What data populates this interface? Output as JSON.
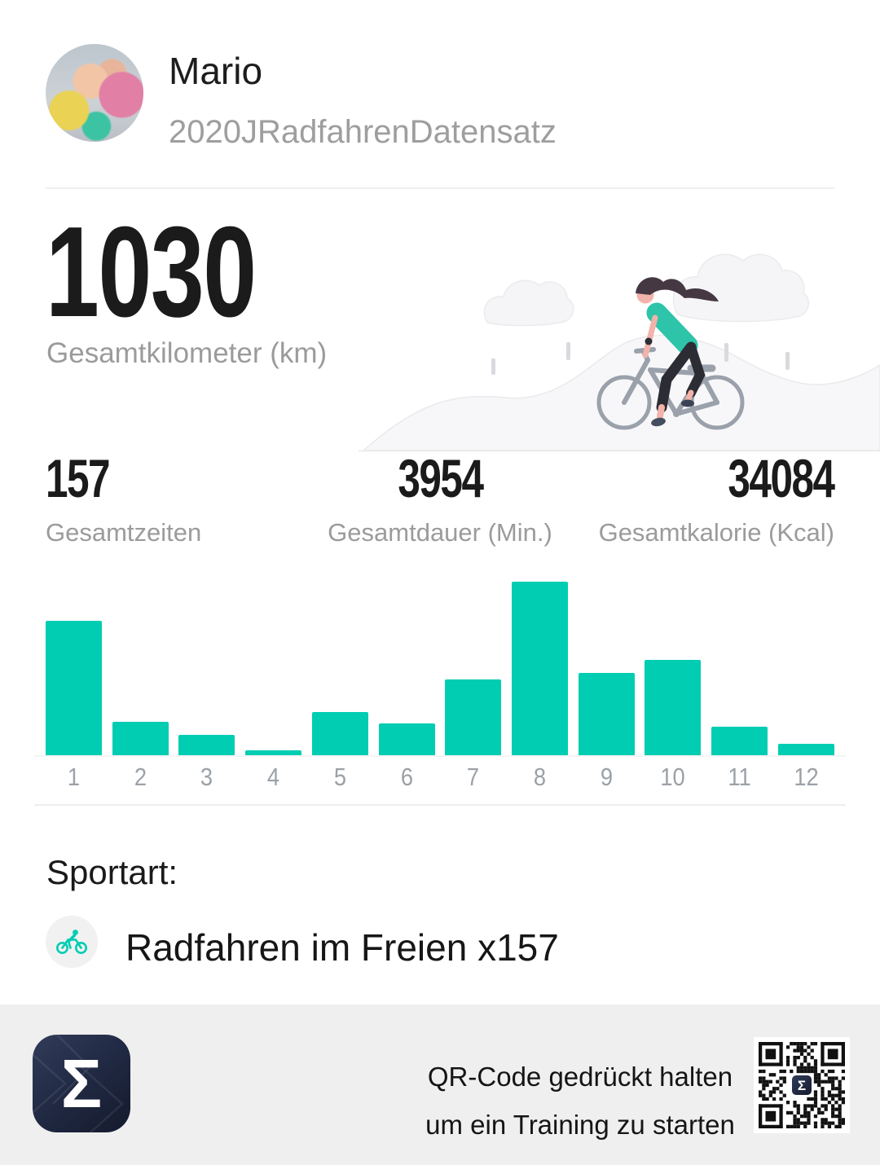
{
  "header": {
    "name": "Mario",
    "subtitle": "2020JRadfahrenDatensatz"
  },
  "hero": {
    "value": "1030",
    "label": "Gesamtkilometer (km)"
  },
  "stats": [
    {
      "value": "157",
      "label": "Gesamtzeiten"
    },
    {
      "value": "3954",
      "label": "Gesamtdauer (Min.)"
    },
    {
      "value": "34084",
      "label": "Gesamtkalorie (Kcal)"
    }
  ],
  "chart_data": {
    "type": "bar",
    "categories": [
      "1",
      "2",
      "3",
      "4",
      "5",
      "6",
      "7",
      "8",
      "9",
      "10",
      "11",
      "12"
    ],
    "values": [
      188,
      47,
      29,
      7,
      61,
      44,
      106,
      243,
      115,
      134,
      40,
      16
    ],
    "title": "",
    "xlabel": "",
    "ylabel": "",
    "ylim": [
      0,
      250
    ],
    "grid": false,
    "legend": "none",
    "bar_color": "#00cdb2"
  },
  "sport": {
    "heading": "Sportart:",
    "items": [
      {
        "icon": "cycling-icon",
        "label": "Radfahren im Freien x157"
      }
    ]
  },
  "footer": {
    "line1": "QR-Code gedrückt halten",
    "line2": "um ein Training zu starten",
    "logo_glyph": "Σ"
  },
  "colors": {
    "accent": "#00cdb2",
    "text": "#1b1b1b",
    "muted": "#9b9b9b",
    "axis_label": "#9ba1a7",
    "footer_bg": "#efefef",
    "logo_navy": "#1c2438",
    "qr_module": "#111111"
  }
}
